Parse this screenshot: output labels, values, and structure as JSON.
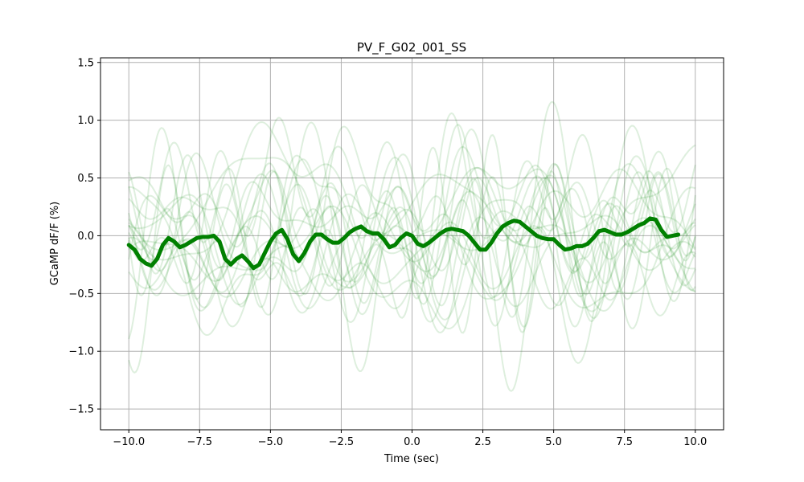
{
  "chart_data": {
    "type": "line",
    "title": "PV_F_G02_001_SS",
    "xlabel": "Time (sec)",
    "ylabel": "GCaMP dF/F (%)",
    "xlim": [
      -11.0,
      11.0
    ],
    "ylim": [
      -1.68,
      1.54
    ],
    "xticks": [
      -10.0,
      -7.5,
      -5.0,
      -2.5,
      0.0,
      2.5,
      5.0,
      7.5,
      10.0
    ],
    "xtick_labels": [
      "−10.0",
      "−7.5",
      "−5.0",
      "−2.5",
      "0.0",
      "2.5",
      "5.0",
      "7.5",
      "10.0"
    ],
    "yticks": [
      -1.5,
      -1.0,
      -0.5,
      0.0,
      0.5,
      1.0,
      1.5
    ],
    "ytick_labels": [
      "−1.5",
      "−1.0",
      "−0.5",
      "0.0",
      "0.5",
      "1.0",
      "1.5"
    ],
    "grid": true,
    "colors": {
      "mean": "#008000",
      "trials": "#008000"
    },
    "trial_count": 20,
    "trial_x_range": [
      -10.0,
      10.0
    ],
    "trial_y_range": [
      -1.53,
      1.38
    ],
    "series": [
      {
        "x": [
          -10.0,
          -9.8,
          -9.6,
          -9.4,
          -9.2,
          -9.0,
          -8.8,
          -8.6,
          -8.4,
          -8.2,
          -8.0,
          -7.8,
          -7.6,
          -7.4,
          -7.2,
          -7.0,
          -6.8,
          -6.6,
          -6.4,
          -6.2,
          -6.0,
          -5.8,
          -5.6,
          -5.4,
          -5.2,
          -5.0,
          -4.8,
          -4.6,
          -4.4,
          -4.2,
          -4.0,
          -3.8,
          -3.6,
          -3.4,
          -3.2,
          -3.0,
          -2.8,
          -2.6,
          -2.4,
          -2.2,
          -2.0,
          -1.8,
          -1.6,
          -1.4,
          -1.2,
          -1.0,
          -0.8,
          -0.6,
          -0.4,
          -0.2,
          0.0,
          0.2,
          0.4,
          0.6,
          0.8,
          1.0,
          1.2,
          1.4,
          1.6,
          1.8,
          2.0,
          2.2,
          2.4,
          2.6,
          2.8,
          3.0,
          3.2,
          3.4,
          3.6,
          3.8,
          4.0,
          4.2,
          4.4,
          4.6,
          4.8,
          5.0,
          5.2,
          5.4,
          5.6,
          5.8,
          6.0,
          6.2,
          6.4,
          6.6,
          6.8,
          7.0,
          7.2,
          7.4,
          7.6,
          7.8,
          8.0,
          8.2,
          8.4,
          8.6,
          8.8,
          9.0,
          9.2,
          9.4
        ],
        "values": [
          -0.08,
          -0.12,
          -0.2,
          -0.24,
          -0.26,
          -0.2,
          -0.08,
          -0.02,
          -0.05,
          -0.1,
          -0.08,
          -0.05,
          -0.02,
          -0.01,
          -0.01,
          0.0,
          -0.05,
          -0.2,
          -0.25,
          -0.2,
          -0.17,
          -0.22,
          -0.28,
          -0.25,
          -0.15,
          -0.05,
          0.02,
          0.05,
          -0.03,
          -0.16,
          -0.22,
          -0.15,
          -0.05,
          0.01,
          0.01,
          -0.03,
          -0.06,
          -0.06,
          -0.02,
          0.03,
          0.06,
          0.08,
          0.04,
          0.02,
          0.02,
          -0.03,
          -0.1,
          -0.08,
          -0.02,
          0.02,
          0.0,
          -0.07,
          -0.09,
          -0.06,
          -0.02,
          0.02,
          0.05,
          0.06,
          0.05,
          0.04,
          0.0,
          -0.06,
          -0.12,
          -0.12,
          -0.06,
          0.02,
          0.08,
          0.11,
          0.13,
          0.12,
          0.08,
          0.04,
          0.0,
          -0.02,
          -0.03,
          -0.03,
          -0.08,
          -0.12,
          -0.11,
          -0.09,
          -0.09,
          -0.07,
          -0.02,
          0.04,
          0.05,
          0.03,
          0.01,
          0.01,
          0.03,
          0.06,
          0.09,
          0.11,
          0.15,
          0.14,
          0.05,
          -0.01,
          0.0,
          0.01
        ]
      }
    ]
  }
}
